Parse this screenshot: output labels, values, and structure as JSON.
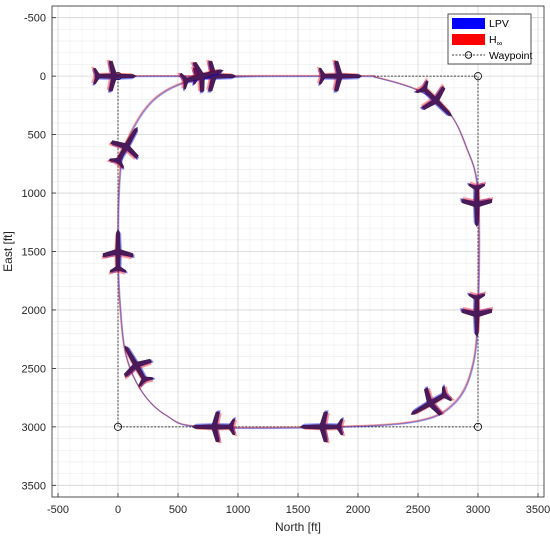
{
  "chart_data": {
    "type": "line",
    "title": "",
    "xlabel": "North [ft]",
    "ylabel": "East [ft]",
    "xlim": [
      -550,
      3550
    ],
    "ylim": [
      -600,
      3600
    ],
    "y_reversed": true,
    "grid": true,
    "minor_grid": true,
    "x_ticks": [
      -500,
      0,
      500,
      1000,
      1500,
      2000,
      2500,
      3000,
      3500
    ],
    "y_ticks": [
      -500,
      0,
      500,
      1000,
      1500,
      2000,
      2500,
      3000,
      3500
    ],
    "legend_position": "top-right",
    "legend": {
      "lpv": "LPV",
      "hinf_base": "H",
      "hinf_sub": "∞",
      "waypoint": "Waypoint"
    },
    "colors": {
      "lpv": "#0000ff",
      "hinf": "#ff0000",
      "aircraft": "#4a1a5a",
      "waypoint_line": "#000000",
      "path": "#7a4a8a"
    },
    "waypoints": {
      "north": [
        0,
        3000,
        3000,
        0,
        0
      ],
      "east": [
        0,
        0,
        3000,
        3000,
        0
      ]
    },
    "trajectory": {
      "north": [
        -150,
        600,
        2000,
        2150,
        2500,
        2750,
        2900,
        3000,
        3000,
        2950,
        2800,
        2500,
        1800,
        700,
        400,
        200,
        70,
        20,
        0,
        20,
        100,
        300,
        600,
        1000,
        1300
      ],
      "east": [
        0,
        0,
        0,
        10,
        120,
        300,
        600,
        1000,
        2000,
        2500,
        2800,
        2950,
        3000,
        3000,
        2900,
        2700,
        2400,
        2000,
        1500,
        800,
        500,
        200,
        40,
        5,
        0
      ]
    },
    "aircraft_poses": [
      {
        "north": -30,
        "east": 0,
        "heading": 0
      },
      {
        "north": 800,
        "east": 0,
        "heading": 0
      },
      {
        "north": 1850,
        "east": 0,
        "heading": 0
      },
      {
        "north": 2650,
        "east": 210,
        "heading": 45
      },
      {
        "north": 2990,
        "east": 1100,
        "heading": 90
      },
      {
        "north": 2990,
        "east": 2040,
        "heading": 90
      },
      {
        "north": 2600,
        "east": 2800,
        "heading": 150
      },
      {
        "north": 1700,
        "east": 3000,
        "heading": 180
      },
      {
        "north": 800,
        "east": 3000,
        "heading": 180
      },
      {
        "north": 150,
        "east": 2470,
        "heading": 240
      },
      {
        "north": 0,
        "east": 1500,
        "heading": 270
      },
      {
        "north": 70,
        "east": 600,
        "heading": 300
      },
      {
        "north": 700,
        "east": 0,
        "heading": 345
      }
    ]
  }
}
